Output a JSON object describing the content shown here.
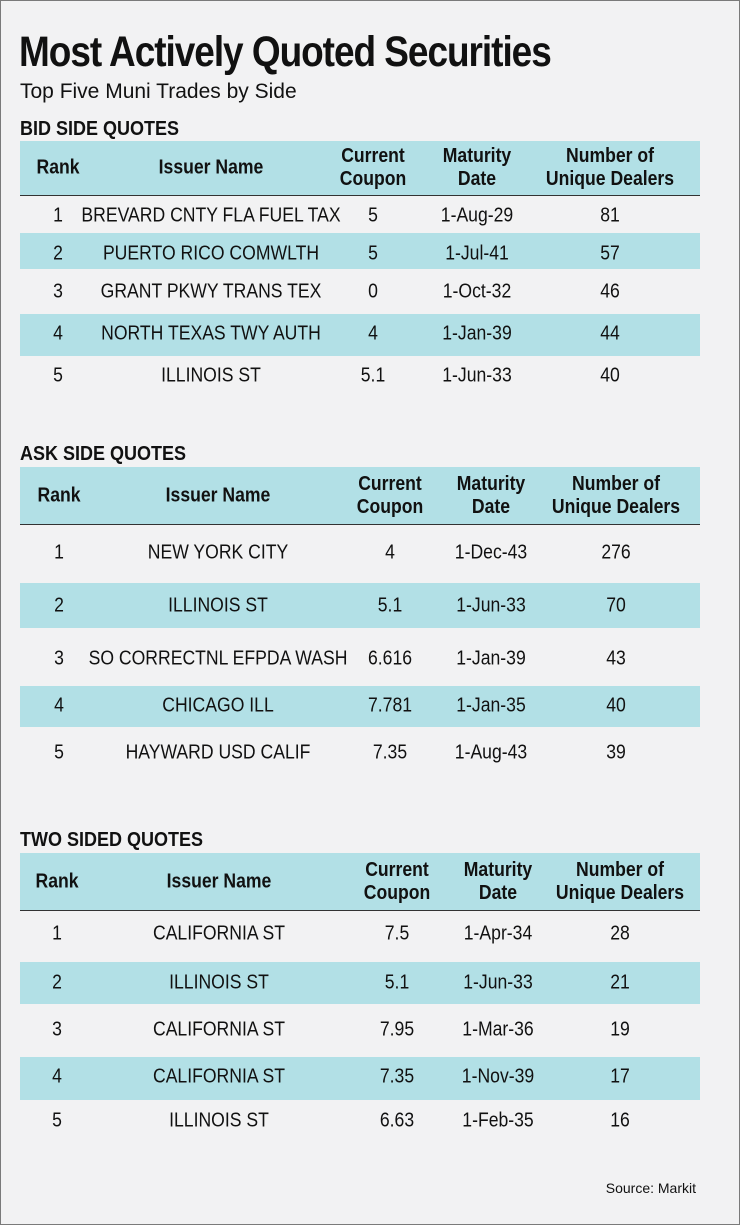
{
  "title": "Most Actively Quoted Securities",
  "subtitle": "Top Five Muni Trades by Side",
  "headers": {
    "rank": "Rank",
    "issuer": "Issuer Name",
    "coupon_1": "Current",
    "coupon_2": "Coupon",
    "maturity_1": "Maturity",
    "maturity_2": "Date",
    "dealers_1": "Number of",
    "dealers_2": "Unique Dealers"
  },
  "tables": [
    {
      "title": "BID SIDE QUOTES",
      "rows": [
        {
          "rank": "1",
          "issuer": "BREVARD CNTY FLA FUEL TAX",
          "coupon": "5",
          "maturity": "1-Aug-29",
          "dealers": "81"
        },
        {
          "rank": "2",
          "issuer": "PUERTO RICO COMWLTH",
          "coupon": "5",
          "maturity": "1-Jul-41",
          "dealers": "57"
        },
        {
          "rank": "3",
          "issuer": "GRANT PKWY TRANS TEX",
          "coupon": "0",
          "maturity": "1-Oct-32",
          "dealers": "46"
        },
        {
          "rank": "4",
          "issuer": "NORTH TEXAS TWY AUTH",
          "coupon": "4",
          "maturity": "1-Jan-39",
          "dealers": "44"
        },
        {
          "rank": "5",
          "issuer": "ILLINOIS ST",
          "coupon": "5.1",
          "maturity": "1-Jun-33",
          "dealers": "40"
        }
      ]
    },
    {
      "title": "ASK SIDE QUOTES",
      "rows": [
        {
          "rank": "1",
          "issuer": "NEW YORK CITY",
          "coupon": "4",
          "maturity": "1-Dec-43",
          "dealers": "276"
        },
        {
          "rank": "2",
          "issuer": "ILLINOIS ST",
          "coupon": "5.1",
          "maturity": "1-Jun-33",
          "dealers": "70"
        },
        {
          "rank": "3",
          "issuer": "SO CORRECTNL EFPDA WASH",
          "coupon": "6.616",
          "maturity": "1-Jan-39",
          "dealers": "43"
        },
        {
          "rank": "4",
          "issuer": "CHICAGO ILL",
          "coupon": "7.781",
          "maturity": "1-Jan-35",
          "dealers": "40"
        },
        {
          "rank": "5",
          "issuer": "HAYWARD USD CALIF",
          "coupon": "7.35",
          "maturity": "1-Aug-43",
          "dealers": "39"
        }
      ]
    },
    {
      "title": "TWO SIDED QUOTES",
      "rows": [
        {
          "rank": "1",
          "issuer": "CALIFORNIA ST",
          "coupon": "7.5",
          "maturity": "1-Apr-34",
          "dealers": "28"
        },
        {
          "rank": "2",
          "issuer": "ILLINOIS ST",
          "coupon": "5.1",
          "maturity": "1-Jun-33",
          "dealers": "21"
        },
        {
          "rank": "3",
          "issuer": "CALIFORNIA ST",
          "coupon": "7.95",
          "maturity": "1-Mar-36",
          "dealers": "19"
        },
        {
          "rank": "4",
          "issuer": "CALIFORNIA ST",
          "coupon": "7.35",
          "maturity": "1-Nov-39",
          "dealers": "17"
        },
        {
          "rank": "5",
          "issuer": "ILLINOIS ST",
          "coupon": "6.63",
          "maturity": "1-Feb-35",
          "dealers": "16"
        }
      ]
    }
  ],
  "source": "Source: Markit",
  "colors": {
    "stripe": "#b2e0e6",
    "background": "#f2f2f3"
  }
}
